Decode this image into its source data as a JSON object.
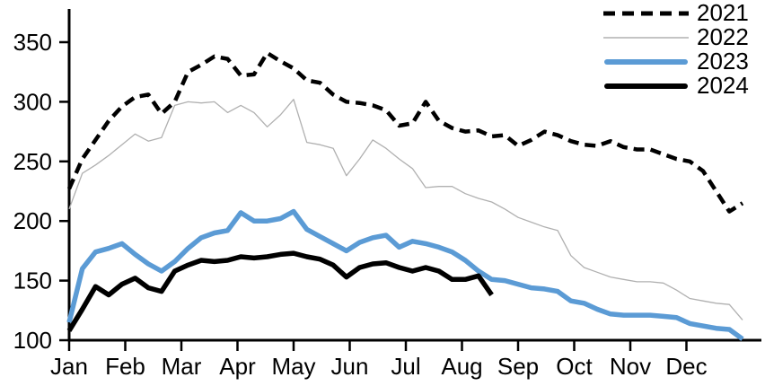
{
  "chart_data": {
    "type": "line",
    "title": "",
    "xlabel": "",
    "ylabel": "",
    "x_frequency": "weekly",
    "xticklabels": [
      "Jan",
      "Feb",
      "Mar",
      "Apr",
      "May",
      "Jun",
      "Jul",
      "Aug",
      "Sep",
      "Oct",
      "Nov",
      "Dec"
    ],
    "yticks": [
      100,
      150,
      200,
      250,
      300,
      350
    ],
    "ylim": [
      100,
      380
    ],
    "grid": false,
    "legend_position": "top-right",
    "series": [
      {
        "name": "2021",
        "color": "#000000",
        "style": "dashed",
        "width": 4.5,
        "values": [
          227,
          252,
          268,
          284,
          296,
          304,
          306,
          290,
          300,
          325,
          331,
          338,
          336,
          322,
          323,
          341,
          334,
          328,
          318,
          316,
          306,
          300,
          299,
          297,
          293,
          280,
          282,
          300,
          284,
          278,
          275,
          276,
          271,
          272,
          263,
          268,
          275,
          272,
          267,
          264,
          263,
          267,
          262,
          260,
          260,
          256,
          252,
          250,
          242,
          225,
          208,
          215
        ]
      },
      {
        "name": "2022",
        "color": "#b0b0b0",
        "style": "solid",
        "width": 1.3,
        "values": [
          210,
          240,
          247,
          255,
          264,
          273,
          267,
          270,
          297,
          300,
          299,
          300,
          291,
          297,
          291,
          279,
          289,
          302,
          266,
          264,
          261,
          238,
          252,
          268,
          261,
          252,
          244,
          228,
          229,
          229,
          223,
          219,
          216,
          210,
          203,
          199,
          195,
          192,
          171,
          161,
          157,
          153,
          151,
          149,
          149,
          148,
          142,
          135,
          133,
          131,
          130,
          117
        ]
      },
      {
        "name": "2023",
        "color": "#5b9bd5",
        "style": "solid",
        "width": 5.5,
        "values": [
          115,
          160,
          174,
          177,
          181,
          172,
          164,
          158,
          166,
          177,
          186,
          190,
          192,
          207,
          200,
          200,
          202,
          208,
          193,
          187,
          181,
          175,
          182,
          186,
          188,
          178,
          183,
          181,
          178,
          174,
          167,
          158,
          151,
          150,
          147,
          144,
          143,
          141,
          133,
          131,
          126,
          122,
          121,
          121,
          121,
          120,
          119,
          114,
          112,
          110,
          109,
          101
        ]
      },
      {
        "name": "2024",
        "color": "#000000",
        "style": "solid",
        "width": 5.5,
        "values": [
          108,
          126,
          145,
          138,
          147,
          152,
          144,
          141,
          158,
          163,
          167,
          166,
          167,
          170,
          169,
          170,
          172,
          173,
          170,
          168,
          163,
          153,
          161,
          164,
          165,
          161,
          158,
          161,
          158,
          151,
          151,
          154,
          138
        ]
      }
    ]
  }
}
